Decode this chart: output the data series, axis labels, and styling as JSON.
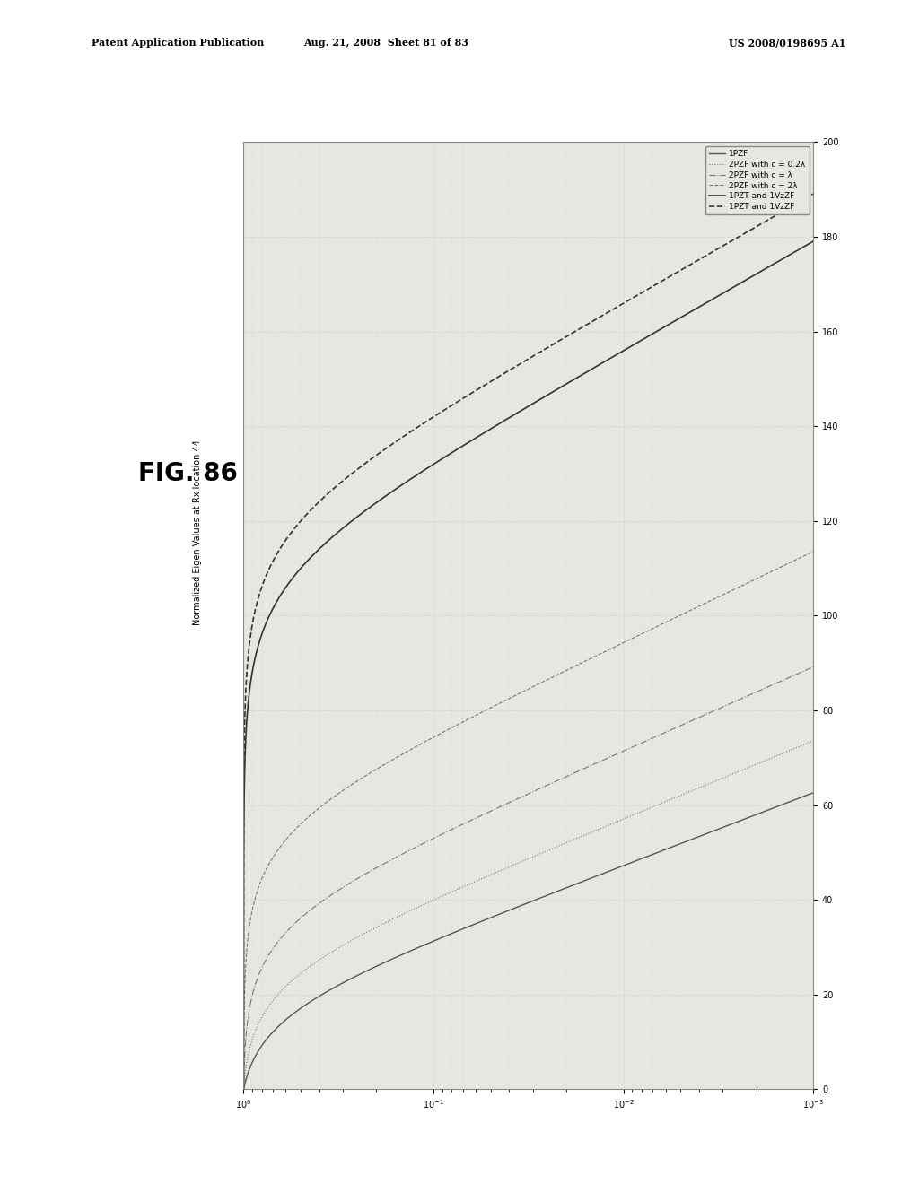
{
  "page_title_left": "Patent Application Publication",
  "page_title_mid": "Aug. 21, 2008  Sheet 81 of 83",
  "page_title_right": "US 2008/0198695 A1",
  "fig_label": "FIG. 86",
  "ylabel": "Normalized Eigen Values at Rx location 44",
  "xlim_log": [
    0,
    -3
  ],
  "ylim": [
    0,
    200
  ],
  "yticks": [
    0,
    20,
    40,
    60,
    80,
    100,
    120,
    140,
    160,
    180,
    200
  ],
  "legend_entries": [
    "1PZF",
    "2PZF with c = 0.2λ",
    "2PZF with c = λ",
    "2PZF with c = 2λ",
    "1PZT and 1VzZF",
    "--- 1PZT and 1VzZF"
  ],
  "legend_labels": [
    "1PZF",
    "2PZF with c = 0.2λ",
    "2PZF with c = λ",
    "2PZF with c = 2λ",
    "1PZT and 1VzZF",
    "1PZT and 1VzZF"
  ],
  "line_styles": [
    "-",
    ":",
    "-.",
    "--",
    "-",
    "--"
  ],
  "line_colors": [
    "#555555",
    "#777777",
    "#777777",
    "#777777",
    "#333333",
    "#333333"
  ],
  "line_widths": [
    1.0,
    0.8,
    0.8,
    0.8,
    1.2,
    1.2
  ],
  "curve_inflections": [
    0.08,
    0.12,
    0.18,
    0.28,
    0.55,
    0.6
  ],
  "curve_steepness": [
    30,
    28,
    26,
    24,
    20,
    20
  ],
  "background_color": "#f5f3ef",
  "plot_bg": "#e8e6e0",
  "grid_color": "#bbbbbb",
  "page_bg": "#ffffff"
}
